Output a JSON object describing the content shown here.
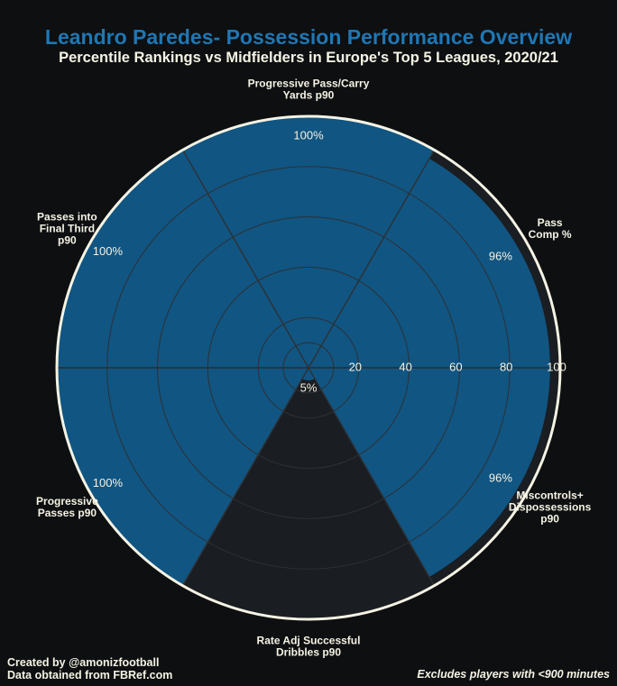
{
  "header": {
    "title": "Leandro Paredes- Possession Performance Overview",
    "subtitle": "Percentile Rankings vs Midfielders in Europe's Top 5 Leagues, 2020/21"
  },
  "footer": {
    "credit": "Created by @amonizfootball",
    "source": "Data obtained from FBRef.com",
    "note": "Excludes players with <900 minutes"
  },
  "colors": {
    "background": "#0d0f11",
    "plot_background": "#1a1d21",
    "bar": "#115582",
    "title": "#1f77b4",
    "text": "#f5f3e4",
    "outer_ring": "#f5f3e4"
  },
  "chart_data": {
    "type": "polar-bar",
    "rlim": [
      0,
      100
    ],
    "radial_ticks": [
      20,
      40,
      60,
      80,
      100
    ],
    "series": [
      {
        "name": "Progressive Pass/Carry Yards p90",
        "label_lines": [
          "Progressive Pass/Carry",
          "Yards p90"
        ],
        "value": 100,
        "value_label": "100%"
      },
      {
        "name": "Pass Comp %",
        "label_lines": [
          "Pass",
          "Comp %"
        ],
        "value": 96,
        "value_label": "96%"
      },
      {
        "name": "Miscontrols+ Dispossessions p90",
        "label_lines": [
          "Miscontrols+",
          "Dispossessions",
          "p90"
        ],
        "value": 96,
        "value_label": "96%"
      },
      {
        "name": "Rate Adj Successful Dribbles p90",
        "label_lines": [
          "Rate Adj Successful",
          "Dribbles p90"
        ],
        "value": 5,
        "value_label": "5%"
      },
      {
        "name": "Progressive Passes p90",
        "label_lines": [
          "Progressive",
          "Passes p90"
        ],
        "value": 100,
        "value_label": "100%"
      },
      {
        "name": "Passes into Final Third p90",
        "label_lines": [
          "Passes into",
          "Final Third",
          "p90"
        ],
        "value": 100,
        "value_label": "100%"
      }
    ]
  }
}
